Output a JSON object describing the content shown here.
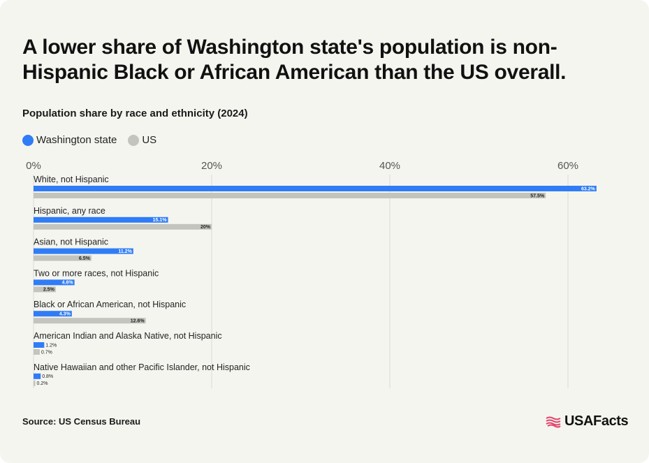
{
  "title": "A lower share of Washington state's population is non-Hispanic Black or African American than the US overall.",
  "subtitle": "Population share by race and ethnicity (2024)",
  "source": "Source: US Census Bureau",
  "logo_text": "USAFacts",
  "colors": {
    "washington": "#2f7cf6",
    "us": "#c4c4bf",
    "background": "#f5f5f0"
  },
  "chart_data": {
    "type": "bar",
    "orientation": "horizontal",
    "title": "A lower share of Washington state's population is non-Hispanic Black or African American than the US overall.",
    "subtitle": "Population share by race and ethnicity (2024)",
    "xlim": [
      0,
      65
    ],
    "ticks": [
      0,
      20,
      40,
      60
    ],
    "tick_labels": [
      "0%",
      "20%",
      "40%",
      "60%"
    ],
    "grid": true,
    "legend_position": "top-left",
    "categories": [
      "White, not Hispanic",
      "Hispanic, any race",
      "Asian, not Hispanic",
      "Two or more races, not Hispanic",
      "Black or African American, not Hispanic",
      "American Indian and Alaska Native, not Hispanic",
      "Native Hawaiian and other Pacific Islander, not Hispanic"
    ],
    "series": [
      {
        "name": "Washington state",
        "values": [
          63.2,
          15.1,
          11.2,
          4.6,
          4.3,
          1.2,
          0.8
        ],
        "labels": [
          "63.2%",
          "15.1%",
          "11.2%",
          "4.6%",
          "4.3%",
          "1.2%",
          "0.8%"
        ]
      },
      {
        "name": "US",
        "values": [
          57.5,
          20,
          6.5,
          2.5,
          12.6,
          0.7,
          0.2
        ],
        "labels": [
          "57.5%",
          "20%",
          "6.5%",
          "2.5%",
          "12.6%",
          "0.7%",
          "0.2%"
        ]
      }
    ]
  }
}
